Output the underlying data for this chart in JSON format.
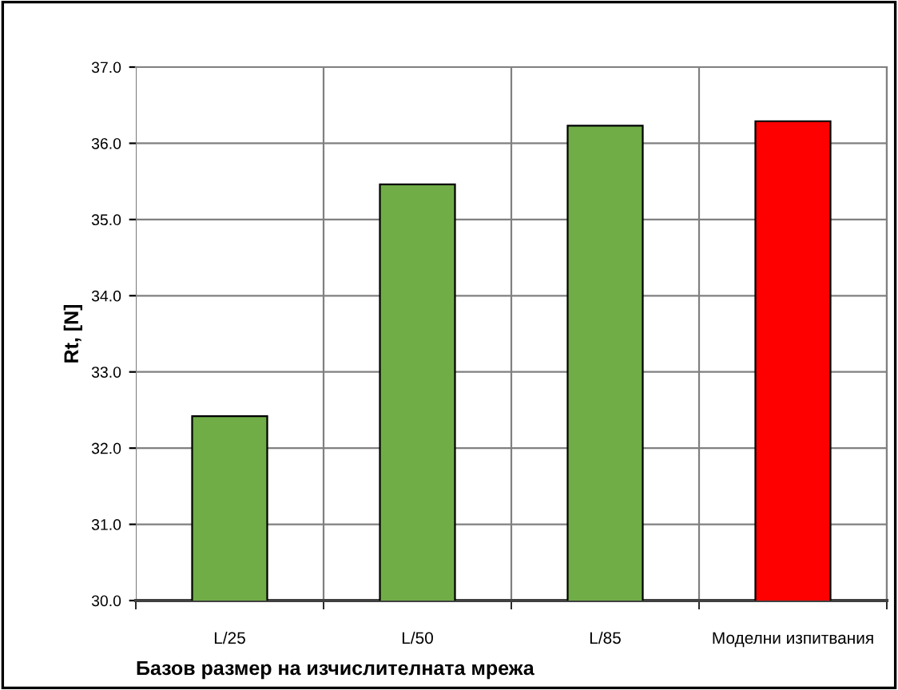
{
  "chart_data": {
    "type": "bar",
    "xlabel": "Базов размер на изчислителната мрежа",
    "ylabel": "Rt, [N]",
    "categories": [
      "L/25",
      "L/50",
      "L/85",
      "Моделни изпитвания"
    ],
    "values": [
      32.42,
      35.46,
      36.23,
      36.29
    ],
    "colors": [
      "#70ad47",
      "#70ad47",
      "#70ad47",
      "#ff0000"
    ],
    "ylim": [
      30,
      37
    ],
    "yticks": [
      {
        "value": 30,
        "label": "30.0"
      },
      {
        "value": 31,
        "label": "31.0"
      },
      {
        "value": 32,
        "label": "32.0"
      },
      {
        "value": 33,
        "label": "33.0"
      },
      {
        "value": 34,
        "label": "34.0"
      },
      {
        "value": 35,
        "label": "35.0"
      },
      {
        "value": 36,
        "label": "36.0"
      },
      {
        "value": 37,
        "label": "37.0"
      }
    ],
    "grid": true,
    "legend": false
  }
}
